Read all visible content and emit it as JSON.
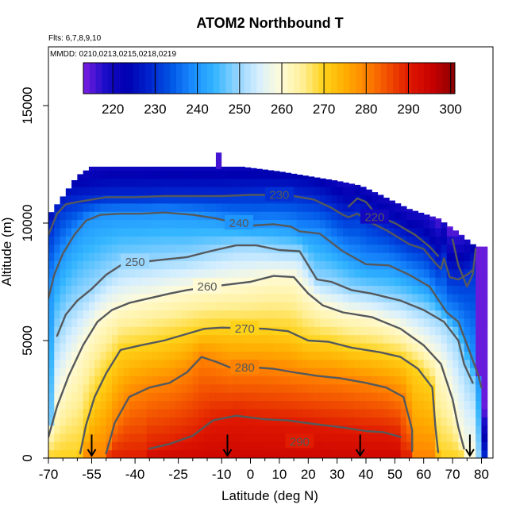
{
  "chart_data": {
    "type": "heatmap",
    "title": "ATOM2 Northbound T",
    "subtitle_flights": "Flts: 6,7,8,9,10",
    "subtitle_dates": "MMDD: 0210,0213,0215,0218,0219",
    "xlabel": "Latitude (deg N)",
    "ylabel": "Altitude (m)",
    "xlim": [
      -70,
      84
    ],
    "ylim": [
      0,
      17500
    ],
    "x_ticks": [
      -70,
      -55,
      -40,
      -25,
      -10,
      0,
      10,
      20,
      30,
      40,
      50,
      60,
      70,
      80
    ],
    "x_tick_labels": [
      "-70",
      "-55",
      "-40",
      "-25",
      "-10",
      "0",
      "10",
      "20",
      "30",
      "40",
      "50",
      "60",
      "70",
      "80"
    ],
    "x_minor_ticks": [
      -65,
      -60,
      -50,
      -45,
      -35,
      -30,
      -20,
      -15,
      -5,
      5,
      15,
      25,
      35,
      45,
      55,
      65,
      75
    ],
    "y_ticks": [
      0,
      5000,
      10000,
      15000
    ],
    "y_tick_labels": [
      "0",
      "5000",
      "10000",
      "15000"
    ],
    "colorbar": {
      "min": 213,
      "max": 301,
      "ticks": [
        220,
        230,
        240,
        250,
        260,
        270,
        280,
        290,
        300
      ],
      "tick_labels": [
        "220",
        "230",
        "240",
        "250",
        "260",
        "270",
        "280",
        "290",
        "300"
      ],
      "colors": [
        "#7b1fe0",
        "#1a0dc8",
        "#0000b0",
        "#0022cc",
        "#0055e6",
        "#1a8cff",
        "#33b5ff",
        "#8fd3ff",
        "#d6efff",
        "#fffbd9",
        "#fff099",
        "#ffd21a",
        "#ffad00",
        "#ff8000",
        "#f04a00",
        "#dd1500",
        "#c40000",
        "#8a0000"
      ]
    },
    "grid_lat_range": [
      -70,
      81
    ],
    "data_top_altitude": [
      {
        "lat": -70,
        "alt": 10300
      },
      {
        "lat": -67,
        "alt": 10800
      },
      {
        "lat": -64,
        "alt": 11300
      },
      {
        "lat": -60,
        "alt": 12000
      },
      {
        "lat": -55,
        "alt": 12400
      },
      {
        "lat": -45,
        "alt": 12400
      },
      {
        "lat": -30,
        "alt": 12400
      },
      {
        "lat": -15,
        "alt": 12400
      },
      {
        "lat": -3,
        "alt": 12400
      },
      {
        "lat": 10,
        "alt": 12200
      },
      {
        "lat": 20,
        "alt": 12000
      },
      {
        "lat": 30,
        "alt": 11800
      },
      {
        "lat": 38,
        "alt": 11600
      },
      {
        "lat": 45,
        "alt": 11200
      },
      {
        "lat": 55,
        "alt": 10600
      },
      {
        "lat": 65,
        "alt": 10200
      },
      {
        "lat": 72,
        "alt": 9600
      },
      {
        "lat": 78,
        "alt": 9000
      },
      {
        "lat": 81,
        "alt": 9000
      }
    ],
    "data_top_spike": {
      "lat": -11,
      "alt": 13000
    },
    "contours": [
      {
        "level": 290,
        "label": "290",
        "label_at": [
          17,
          700
        ],
        "points": [
          [
            -35,
            400
          ],
          [
            -28,
            600
          ],
          [
            -20,
            950
          ],
          [
            -13,
            1600
          ],
          [
            -5,
            1800
          ],
          [
            5,
            1650
          ],
          [
            13,
            1600
          ],
          [
            22,
            1450
          ],
          [
            32,
            1300
          ],
          [
            40,
            1150
          ],
          [
            46,
            1100
          ],
          [
            52,
            900
          ]
        ]
      },
      {
        "level": 280,
        "label": "280",
        "label_at": [
          -2,
          3850
        ],
        "points": [
          [
            -50,
            200
          ],
          [
            -47,
            1500
          ],
          [
            -42,
            2600
          ],
          [
            -35,
            3000
          ],
          [
            -28,
            3200
          ],
          [
            -22,
            3650
          ],
          [
            -17,
            4300
          ],
          [
            -12,
            4100
          ],
          [
            -7,
            3850
          ],
          [
            2,
            3850
          ],
          [
            8,
            3800
          ],
          [
            15,
            3650
          ],
          [
            23,
            3500
          ],
          [
            31,
            3400
          ],
          [
            40,
            3200
          ],
          [
            47,
            3000
          ],
          [
            53,
            2600
          ],
          [
            56,
            1200
          ],
          [
            56,
            300
          ]
        ]
      },
      {
        "level": 270,
        "label": "270",
        "label_at": [
          -2,
          5500
        ],
        "points": [
          [
            -59,
            200
          ],
          [
            -57,
            1400
          ],
          [
            -54,
            2600
          ],
          [
            -50,
            3600
          ],
          [
            -45,
            4600
          ],
          [
            -38,
            4800
          ],
          [
            -30,
            5000
          ],
          [
            -23,
            5250
          ],
          [
            -16,
            5500
          ],
          [
            -10,
            5550
          ],
          [
            5,
            5500
          ],
          [
            13,
            5400
          ],
          [
            20,
            5000
          ],
          [
            27,
            4950
          ],
          [
            35,
            4700
          ],
          [
            45,
            4500
          ],
          [
            52,
            4300
          ],
          [
            58,
            3800
          ],
          [
            63,
            3000
          ],
          [
            64,
            1400
          ],
          [
            65,
            250
          ]
        ]
      },
      {
        "level": 260,
        "label": "260",
        "label_at": [
          -15,
          7300
        ],
        "points": [
          [
            -70,
            900
          ],
          [
            -67,
            2200
          ],
          [
            -63,
            3500
          ],
          [
            -58,
            4800
          ],
          [
            -53,
            5800
          ],
          [
            -48,
            6300
          ],
          [
            -42,
            6600
          ],
          [
            -35,
            6800
          ],
          [
            -28,
            7000
          ],
          [
            -22,
            7150
          ],
          [
            -10,
            7350
          ],
          [
            0,
            7500
          ],
          [
            8,
            7750
          ],
          [
            15,
            7700
          ],
          [
            20,
            7000
          ],
          [
            25,
            6500
          ],
          [
            32,
            6200
          ],
          [
            42,
            6000
          ],
          [
            52,
            5500
          ],
          [
            60,
            4800
          ],
          [
            66,
            4000
          ],
          [
            70,
            2500
          ],
          [
            72,
            1300
          ],
          [
            74,
            400
          ]
        ]
      },
      {
        "level": 250,
        "label": "250",
        "label_at": [
          -40,
          8350
        ],
        "points": [
          [
            -67,
            5200
          ],
          [
            -64,
            6100
          ],
          [
            -60,
            6700
          ],
          [
            -55,
            7200
          ],
          [
            -50,
            7800
          ],
          [
            -45,
            8200
          ],
          [
            -37,
            8350
          ],
          [
            -30,
            8450
          ],
          [
            -22,
            8550
          ],
          [
            -14,
            8800
          ],
          [
            -5,
            9050
          ],
          [
            2,
            9050
          ],
          [
            10,
            8850
          ],
          [
            17,
            8800
          ],
          [
            23,
            7600
          ],
          [
            28,
            7500
          ],
          [
            35,
            7150
          ],
          [
            42,
            7000
          ],
          [
            52,
            6700
          ],
          [
            60,
            6300
          ],
          [
            67,
            5800
          ],
          [
            72,
            5000
          ],
          [
            74,
            4000
          ],
          [
            77,
            3200
          ]
        ]
      },
      {
        "level": 240,
        "label": "240",
        "label_at": [
          -4,
          10000
        ],
        "points": [
          [
            -70,
            6800
          ],
          [
            -68,
            7800
          ],
          [
            -65,
            8700
          ],
          [
            -61,
            9500
          ],
          [
            -57,
            10100
          ],
          [
            -52,
            10350
          ],
          [
            -45,
            10400
          ],
          [
            -38,
            10400
          ],
          [
            -30,
            10450
          ],
          [
            -20,
            10350
          ],
          [
            -12,
            10200
          ],
          [
            -7,
            10050
          ],
          [
            1,
            9900
          ],
          [
            8,
            9950
          ],
          [
            14,
            9850
          ],
          [
            17,
            9650
          ],
          [
            24,
            9550
          ],
          [
            32,
            8800
          ],
          [
            40,
            8250
          ],
          [
            48,
            8200
          ],
          [
            55,
            7800
          ],
          [
            62,
            7300
          ],
          [
            68,
            6200
          ],
          [
            72,
            5800
          ],
          [
            76,
            4500
          ],
          [
            79,
            3500
          ],
          [
            80,
            3000
          ]
        ]
      },
      {
        "level": 230,
        "label": "230",
        "label_at": [
          10,
          11200
        ],
        "points": [
          [
            -70,
            9500
          ],
          [
            -67,
            10400
          ],
          [
            -64,
            10800
          ],
          [
            -60,
            10900
          ],
          [
            -55,
            11000
          ],
          [
            -50,
            11100
          ],
          [
            -40,
            11100
          ],
          [
            -30,
            11150
          ],
          [
            -20,
            11150
          ],
          [
            -10,
            11150
          ],
          [
            0,
            11200
          ],
          [
            8,
            11200
          ],
          [
            15,
            11150
          ],
          [
            22,
            11000
          ],
          [
            28,
            10650
          ],
          [
            32,
            10350
          ],
          [
            34,
            10250
          ],
          [
            37,
            10400
          ],
          [
            42,
            10000
          ],
          [
            47,
            9700
          ],
          [
            55,
            9100
          ],
          [
            60,
            8900
          ],
          [
            64,
            8300
          ],
          [
            66,
            8050
          ],
          [
            67,
            8500
          ],
          [
            69,
            7700
          ],
          [
            72,
            7600
          ],
          [
            75,
            7800
          ],
          [
            77,
            8000
          ]
        ]
      },
      {
        "level": 220,
        "label": "220",
        "label_at": [
          43,
          10250
        ],
        "points": [
          [
            34,
            10700
          ],
          [
            37,
            11050
          ],
          [
            40,
            10900
          ],
          [
            44,
            10300
          ],
          [
            50,
            10000
          ],
          [
            57,
            9500
          ],
          [
            62,
            9000
          ],
          [
            65,
            8600
          ]
        ]
      },
      {
        "level": 220,
        "label": "",
        "label_at": null,
        "points": [
          [
            70,
            9300
          ],
          [
            72,
            8200
          ],
          [
            75,
            7300
          ],
          [
            77,
            7800
          ],
          [
            78,
            8900
          ]
        ]
      }
    ],
    "flight_arrows": [
      {
        "lat": -55,
        "alt": 1000
      },
      {
        "lat": -8,
        "alt": 1000
      },
      {
        "lat": 38,
        "alt": 1000
      },
      {
        "lat": 76,
        "alt": 1000
      }
    ]
  }
}
